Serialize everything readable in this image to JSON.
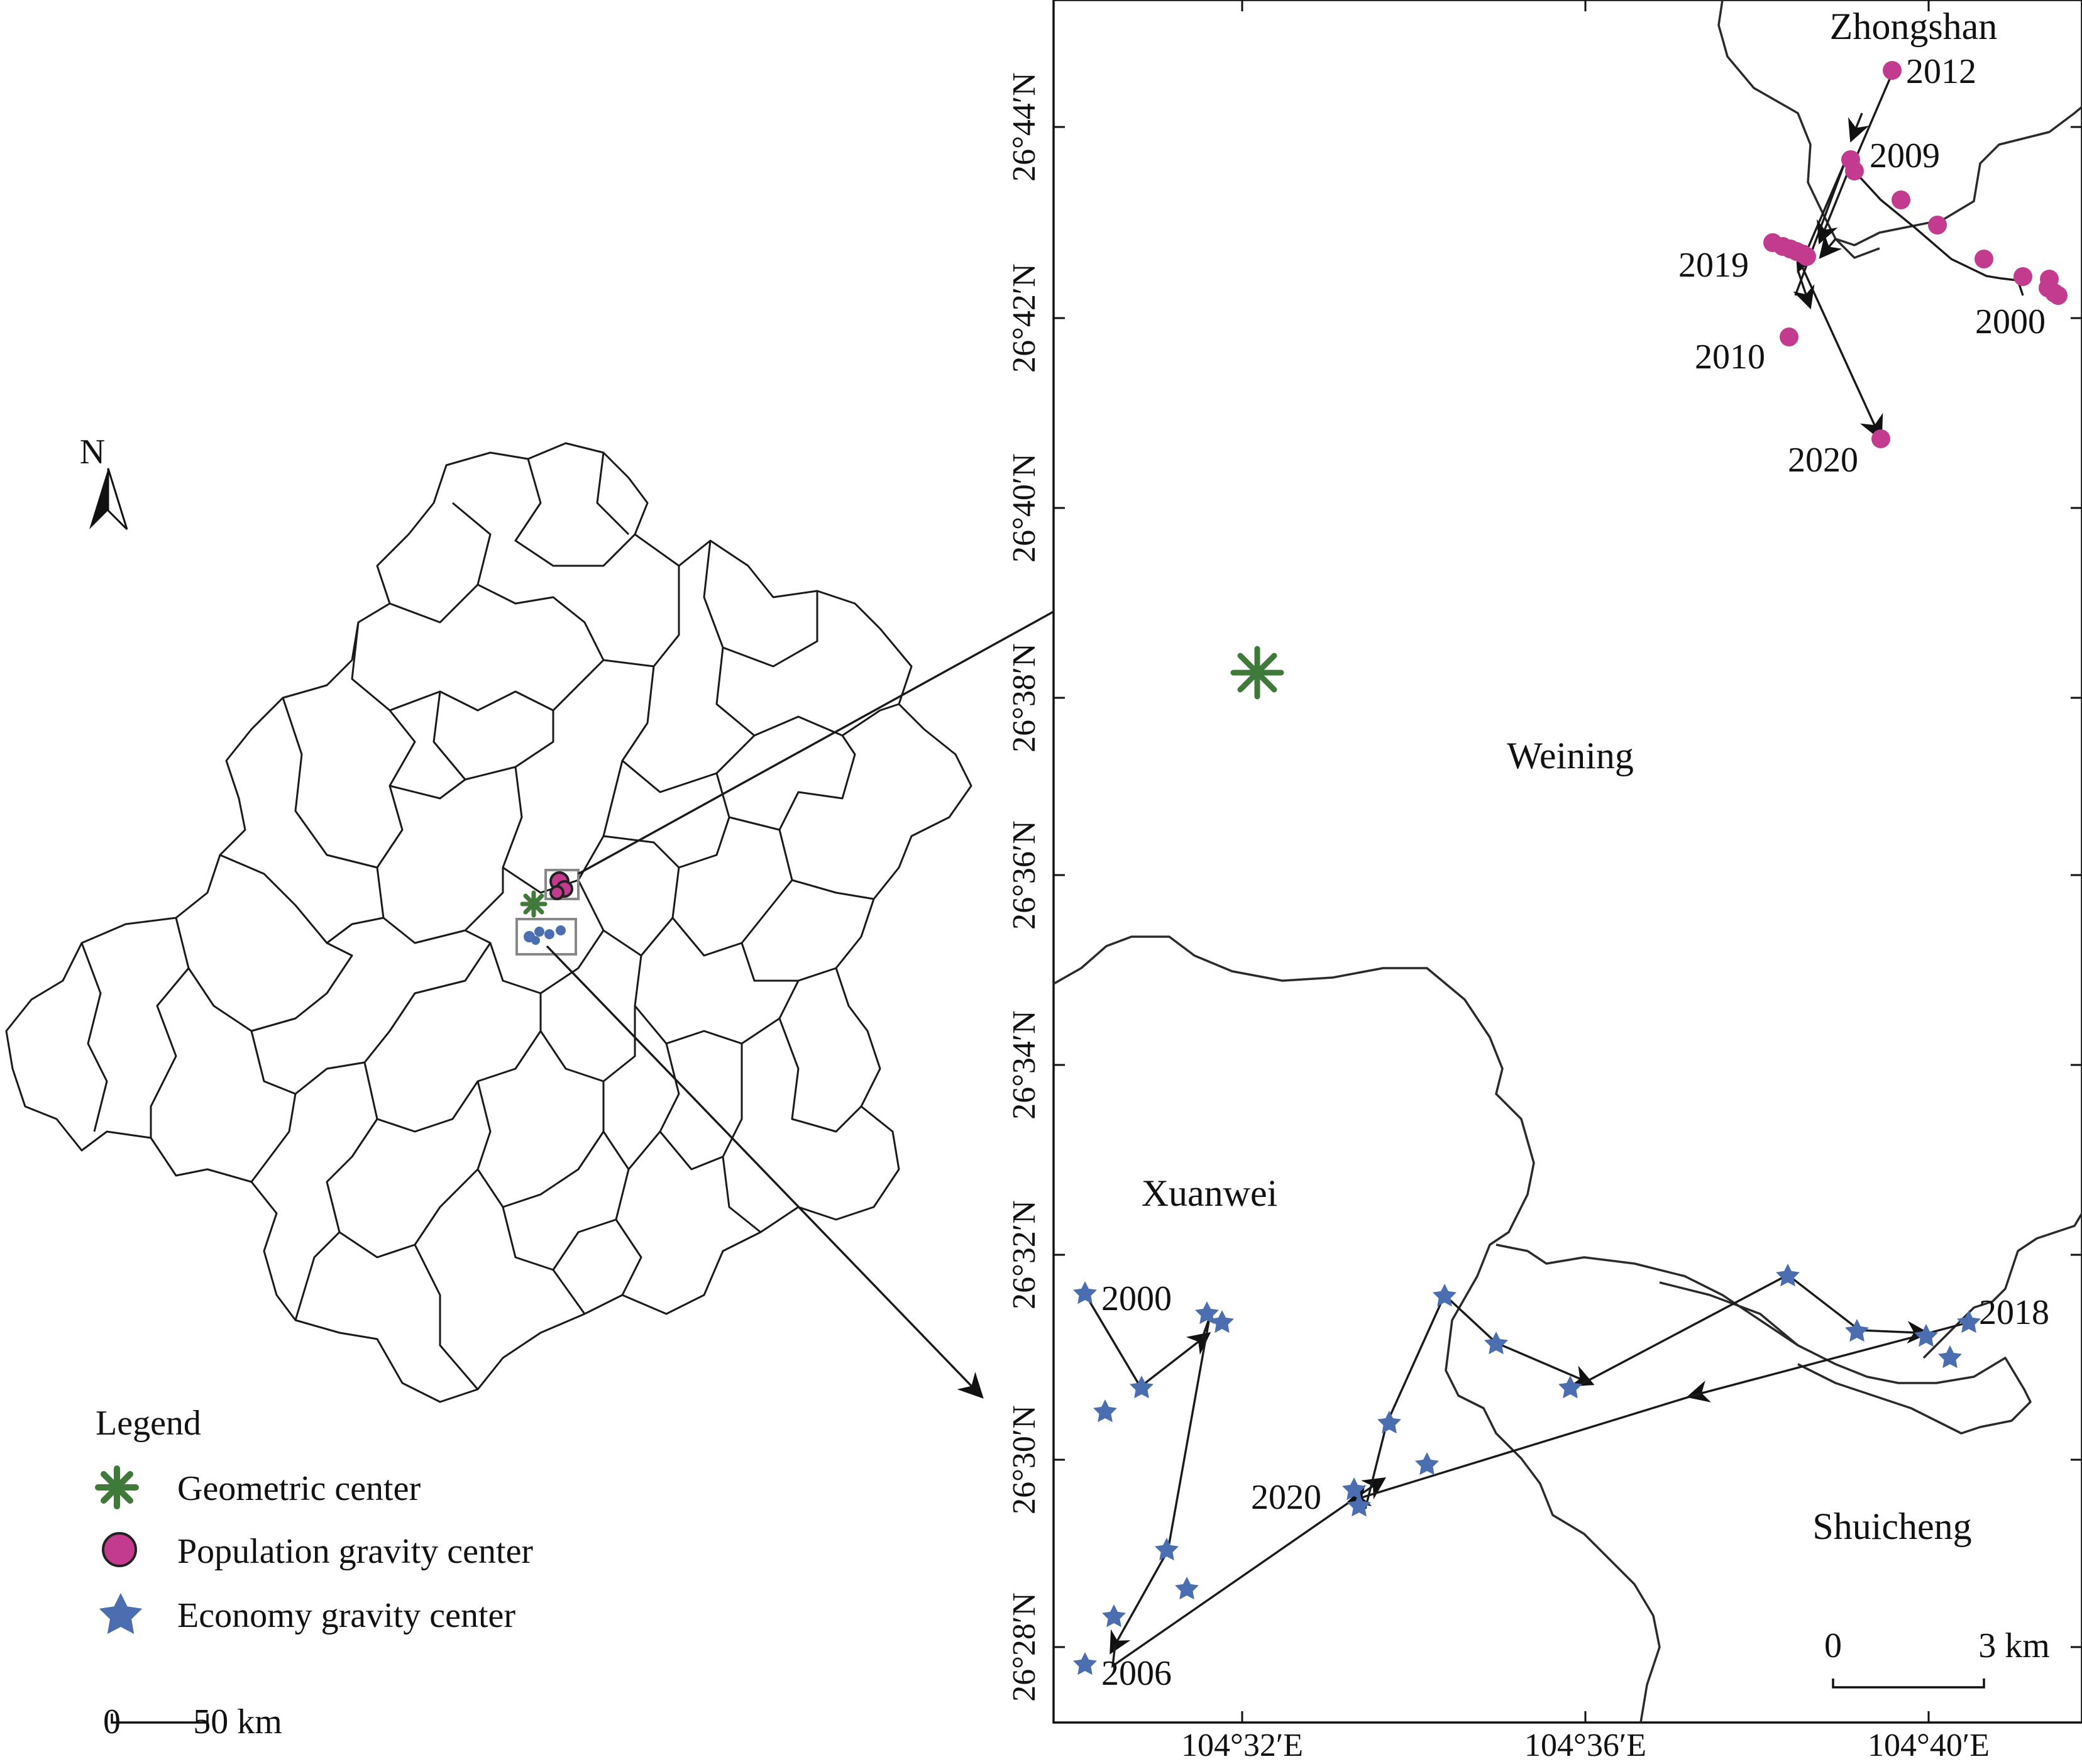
{
  "overview": {
    "north_label": "N",
    "scale": {
      "zero": "0",
      "label": "50 km"
    }
  },
  "legend": {
    "title": "Legend",
    "items": [
      {
        "label": "Geometric center",
        "color": "#3f7a3a",
        "icon": "asterisk-icon"
      },
      {
        "label": "Population gravity center",
        "color": "#c23b8e",
        "icon": "circle-icon"
      },
      {
        "label": "Economy gravity center",
        "color": "#4a6eb0",
        "icon": "star-icon"
      }
    ]
  },
  "inset": {
    "lat_ticks": [
      "26°44′N",
      "26°42′N",
      "26°40′N",
      "26°38′N",
      "26°36′N",
      "26°34′N",
      "26°32′N",
      "26°30′N",
      "26°28′N"
    ],
    "lon_ticks": [
      "104°32′E",
      "104°36′E",
      "104°40′E"
    ],
    "places": [
      "Zhongshan",
      "Weining",
      "Xuanwei",
      "Shuicheng"
    ],
    "population_years": [
      "2012",
      "2009",
      "2019",
      "2000",
      "2010",
      "2020"
    ],
    "economy_years": [
      "2000",
      "2006",
      "2020",
      "2018"
    ],
    "scale": {
      "zero": "0",
      "label": "3 km"
    }
  }
}
